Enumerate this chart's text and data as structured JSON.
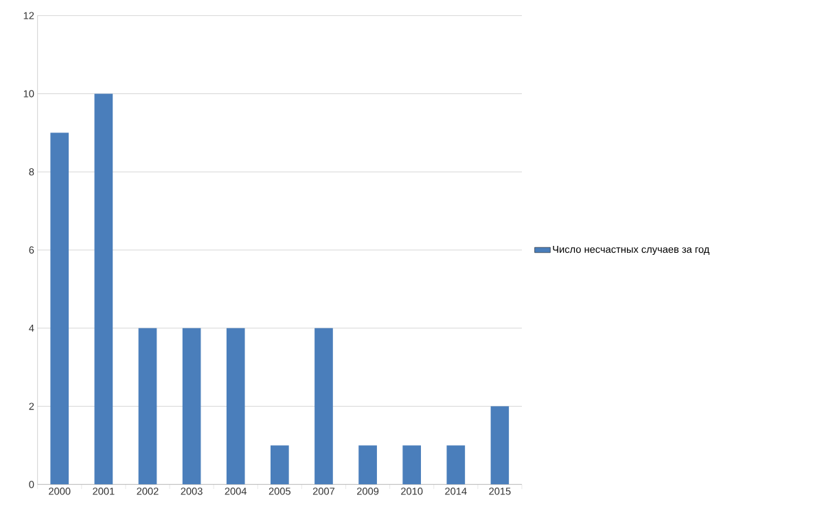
{
  "chart_data": {
    "type": "bar",
    "categories": [
      "2000",
      "2001",
      "2002",
      "2003",
      "2004",
      "2005",
      "2007",
      "2009",
      "2010",
      "2014",
      "2015"
    ],
    "series": [
      {
        "name": "Число несчастных случаев  за год",
        "color": "#4a7ebb",
        "values": [
          9,
          10,
          4,
          4,
          4,
          1,
          4,
          1,
          1,
          1,
          2
        ]
      }
    ],
    "ylim": [
      0,
      12
    ],
    "yticks": [
      0,
      2,
      4,
      6,
      8,
      10,
      12
    ],
    "grid": "y",
    "legend": "right"
  }
}
